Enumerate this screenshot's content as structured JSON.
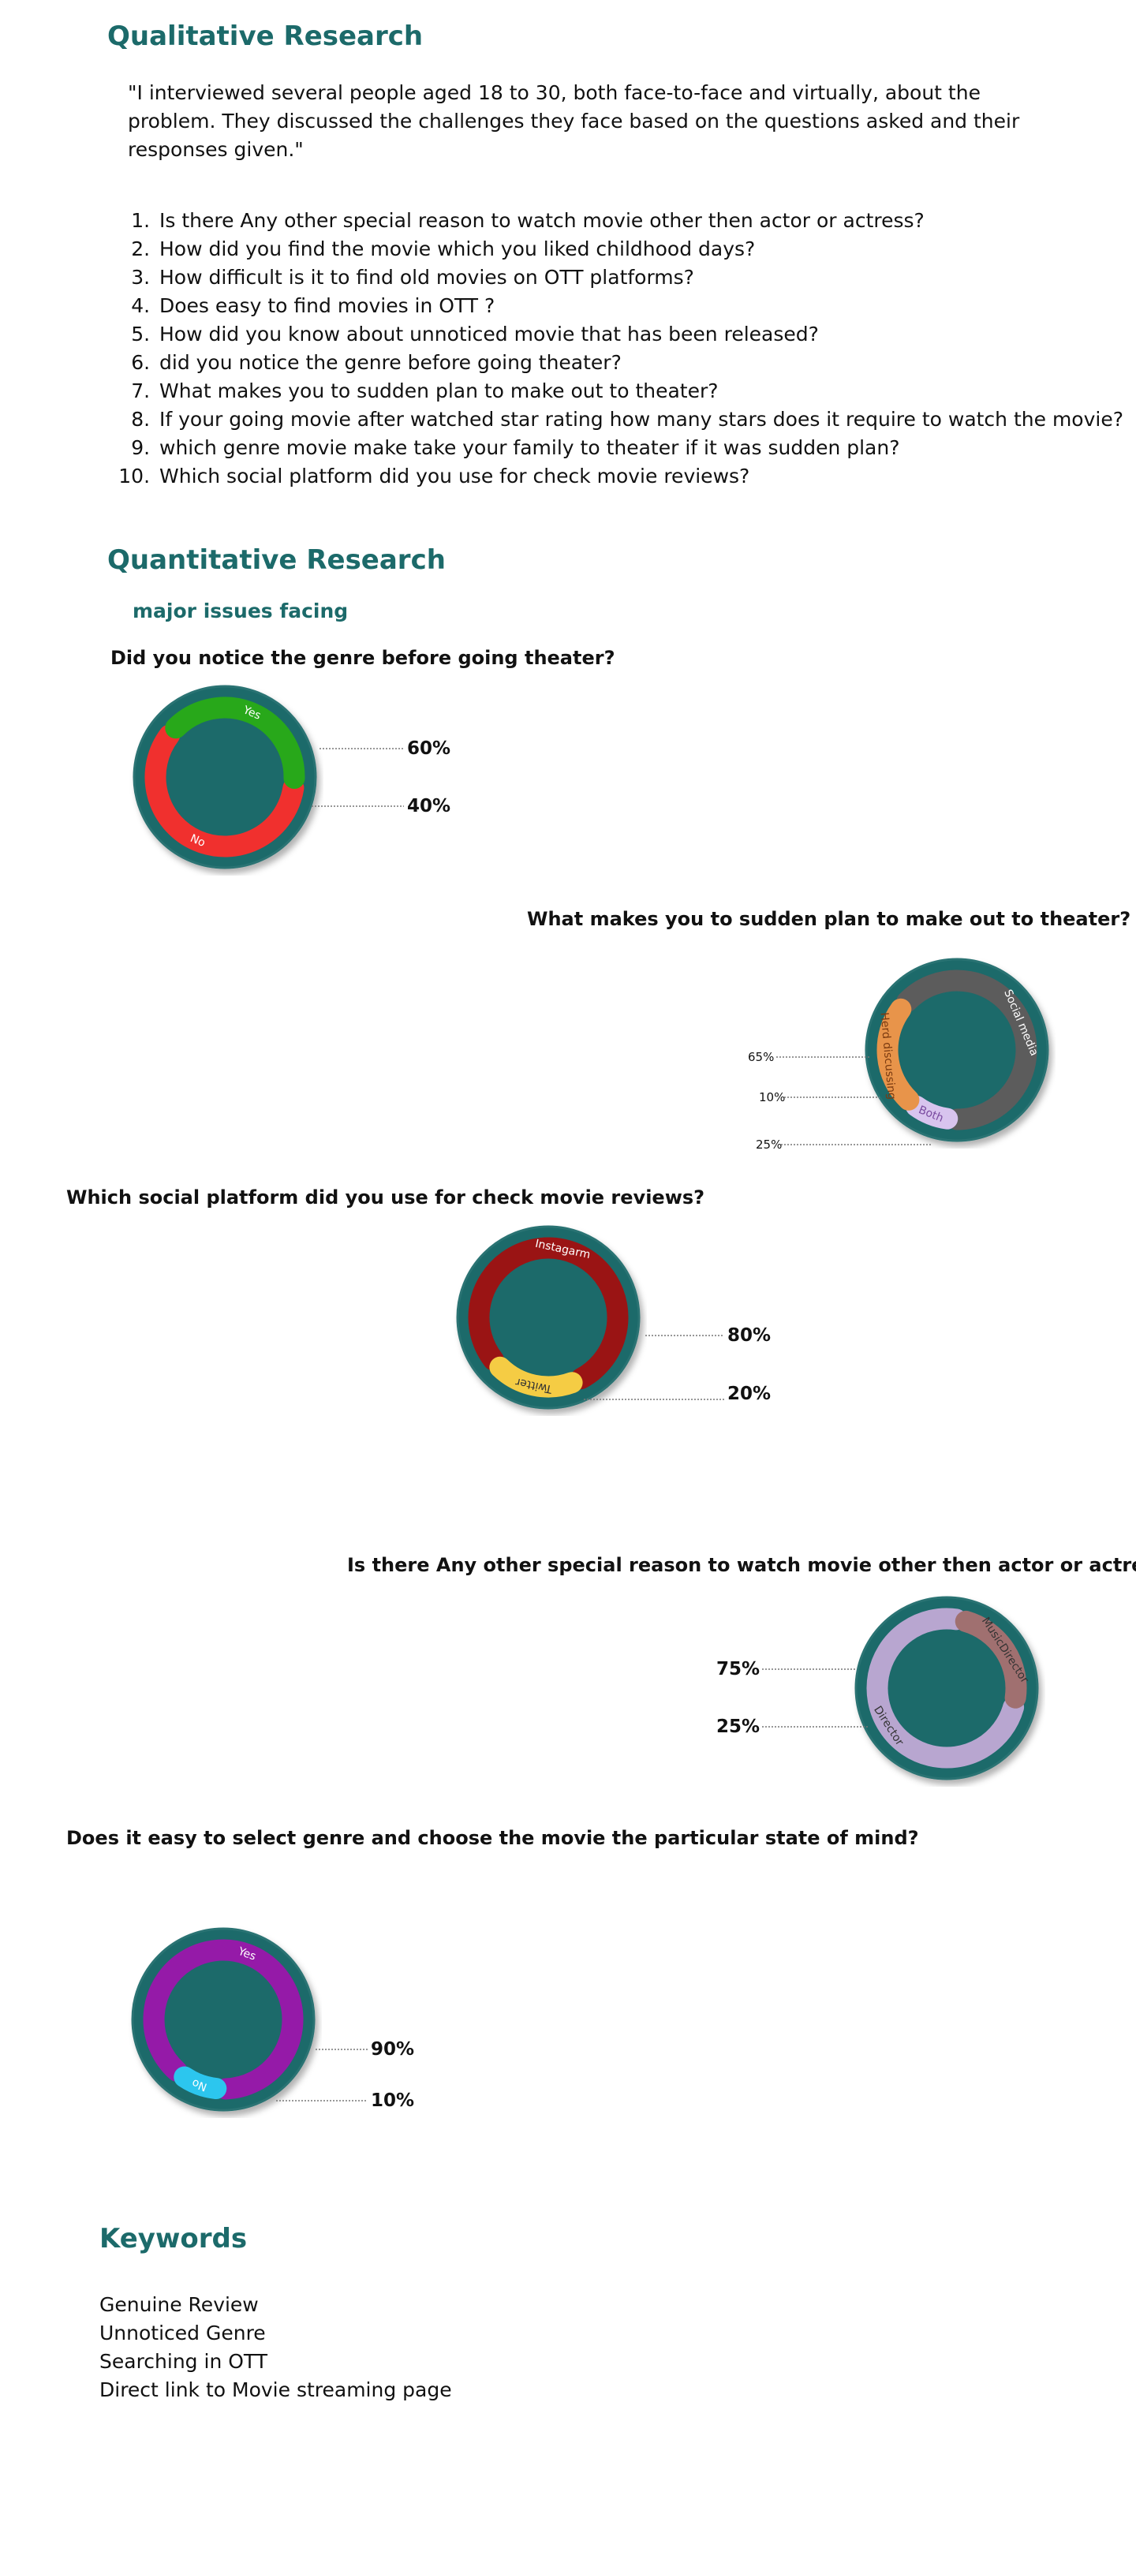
{
  "qualitative": {
    "title": "Qualitative Research",
    "quote": "\"I interviewed several people aged 18 to 30, both face-to-face and virtually, about the problem. They discussed the challenges they face based on the questions asked and their responses given.\"",
    "questions": [
      "Is there Any other special reason to watch movie other then actor or actress?",
      "How did you find the movie which you liked childhood days?",
      "How difficult is it to find old movies on OTT platforms?",
      "Does easy to find movies in OTT ?",
      "How did you know about unnoticed movie that has been released?",
      "did you notice the genre before going theater?",
      "What makes you to sudden plan to make out to theater?",
      "If your going movie after watched  star rating how many stars does it require to watch the movie?",
      "which genre movie make take your family to theater if it was sudden plan?",
      "Which social platform did you use for check movie reviews?"
    ]
  },
  "quantitative": {
    "title": "Quantitative Research",
    "subtitle": "major issues facing"
  },
  "colors": {
    "accent": "#1c6a6a",
    "ring_fill": "#1c6a6a",
    "ring_border": "#2a7373"
  },
  "chart_data": [
    {
      "type": "pie",
      "title": "Did you notice the genre before going theater?",
      "slices": [
        {
          "label": "No",
          "value": 60,
          "display": "60%",
          "color": "#f0302e"
        },
        {
          "label": "Yes",
          "value": 40,
          "display": "40%",
          "color": "#28a81a"
        }
      ]
    },
    {
      "type": "pie",
      "title": "What makes you to sudden plan to make out to theater?",
      "slices": [
        {
          "label": "Social media",
          "value": 65,
          "display": "65%",
          "color": "#5c5c5c"
        },
        {
          "label": "Both",
          "value": 10,
          "display": "10%",
          "color": "#d8c4ee"
        },
        {
          "label": "Herd discussing",
          "value": 25,
          "display": "25%",
          "color": "#e8944a"
        }
      ]
    },
    {
      "type": "pie",
      "title": "Which social platform did you use for check movie reviews?",
      "slices": [
        {
          "label": "Instagarm",
          "value": 80,
          "display": "80%",
          "color": "#9a1414"
        },
        {
          "label": "Twitter",
          "value": 20,
          "display": "20%",
          "color": "#f5cc44"
        }
      ]
    },
    {
      "type": "pie",
      "title": "Is there Any other special reason to watch movie other then actor or actress?",
      "slices": [
        {
          "label": "Director",
          "value": 75,
          "display": "75%",
          "color": "#b8a6d0"
        },
        {
          "label": "MusicDirector",
          "value": 25,
          "display": "25%",
          "color": "#a07070"
        }
      ]
    },
    {
      "type": "pie",
      "title": "Does it easy to select genre and choose the movie the particular state of mind?",
      "slices": [
        {
          "label": "Yes",
          "value": 90,
          "display": "90%",
          "color": "#951aa8"
        },
        {
          "label": "No",
          "value": 10,
          "display": "10%",
          "color": "#2cc6ee"
        }
      ]
    }
  ],
  "keywords": {
    "title": "Keywords",
    "items": [
      "Genuine Review",
      "Unnoticed Genre",
      "Searching in OTT",
      "Direct link to Movie streaming page"
    ]
  }
}
